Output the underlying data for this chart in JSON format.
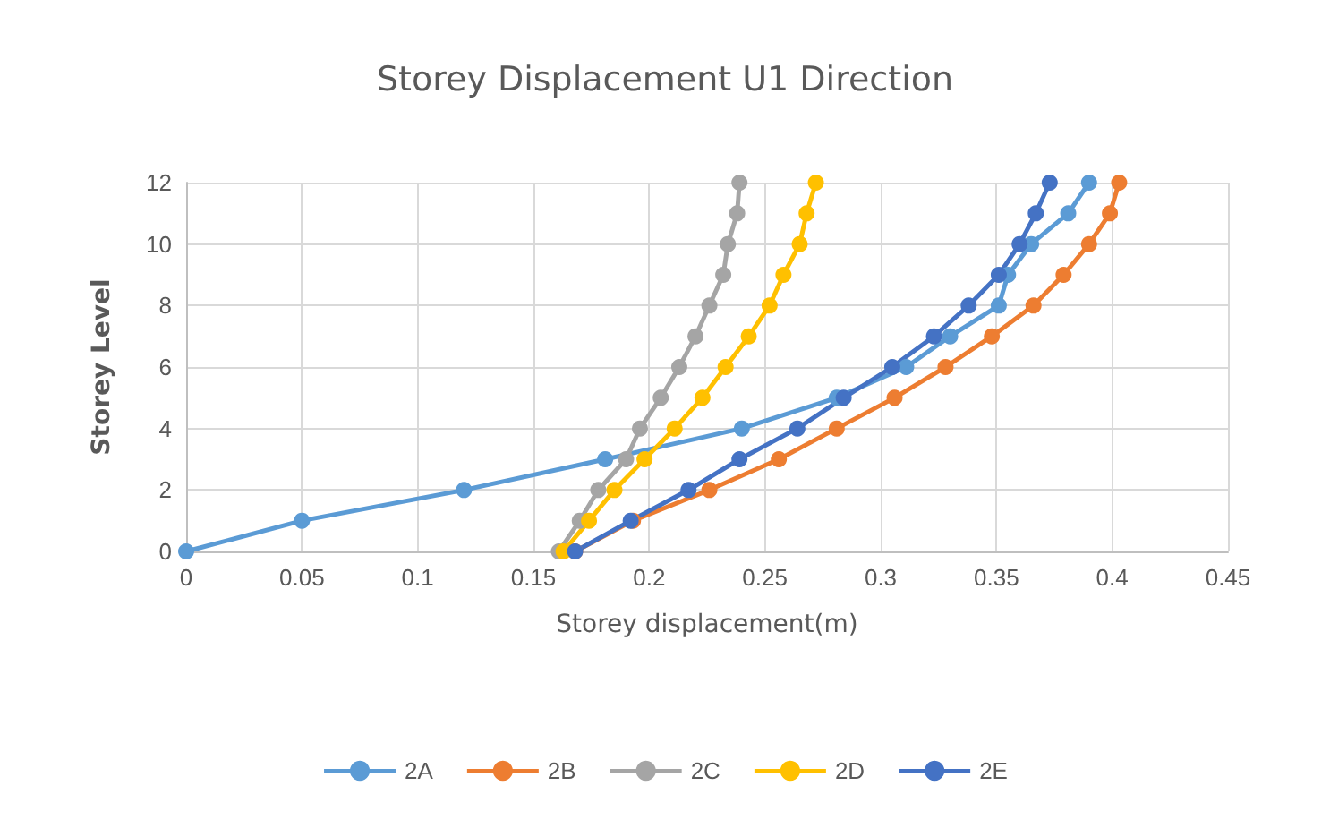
{
  "chart_data": {
    "type": "line",
    "title": "Storey Displacement U1 Direction",
    "xlabel": "Storey displacement(m)",
    "ylabel": "Storey Level",
    "xlim": [
      0,
      0.45
    ],
    "xticks": [
      0,
      0.05,
      0.1,
      0.15,
      0.2,
      0.25,
      0.3,
      0.35,
      0.4,
      0.45
    ],
    "ylim": [
      0,
      12
    ],
    "yticks": [
      0,
      2,
      4,
      6,
      8,
      10,
      12
    ],
    "grid": true,
    "legend": "bottom",
    "marker": "circle",
    "line_style": "solid",
    "series": [
      {
        "name": "2A",
        "color": "#5b9bd5",
        "x": [
          0,
          0.05,
          0.12,
          0.181,
          0.24,
          0.281,
          0.311,
          0.33,
          0.351,
          0.355,
          0.365,
          0.381,
          0.39
        ],
        "values": [
          0,
          1,
          2,
          3,
          4,
          5,
          6,
          7,
          8,
          9,
          10,
          11,
          12
        ]
      },
      {
        "name": "2B",
        "color": "#ed7d31",
        "x": [
          0.168,
          0.193,
          0.226,
          0.256,
          0.281,
          0.306,
          0.328,
          0.348,
          0.366,
          0.379,
          0.39,
          0.399,
          0.403
        ],
        "values": [
          0,
          1,
          2,
          3,
          4,
          5,
          6,
          7,
          8,
          9,
          10,
          11,
          12
        ]
      },
      {
        "name": "2C",
        "color": "#a5a5a5",
        "x": [
          0.161,
          0.17,
          0.178,
          0.19,
          0.196,
          0.205,
          0.213,
          0.22,
          0.226,
          0.232,
          0.234,
          0.238,
          0.239
        ],
        "values": [
          0,
          1,
          2,
          3,
          4,
          5,
          6,
          7,
          8,
          9,
          10,
          11,
          12
        ]
      },
      {
        "name": "2D",
        "color": "#ffc000",
        "x": [
          0.163,
          0.174,
          0.185,
          0.198,
          0.211,
          0.223,
          0.233,
          0.243,
          0.252,
          0.258,
          0.265,
          0.268,
          0.272
        ],
        "values": [
          0,
          1,
          2,
          3,
          4,
          5,
          6,
          7,
          8,
          9,
          10,
          11,
          12
        ]
      },
      {
        "name": "2E",
        "color": "#4472c4",
        "x": [
          0.168,
          0.192,
          0.217,
          0.239,
          0.264,
          0.284,
          0.305,
          0.323,
          0.338,
          0.351,
          0.36,
          0.367,
          0.373
        ],
        "values": [
          0,
          1,
          2,
          3,
          4,
          5,
          6,
          7,
          8,
          9,
          10,
          11,
          12
        ]
      }
    ]
  }
}
